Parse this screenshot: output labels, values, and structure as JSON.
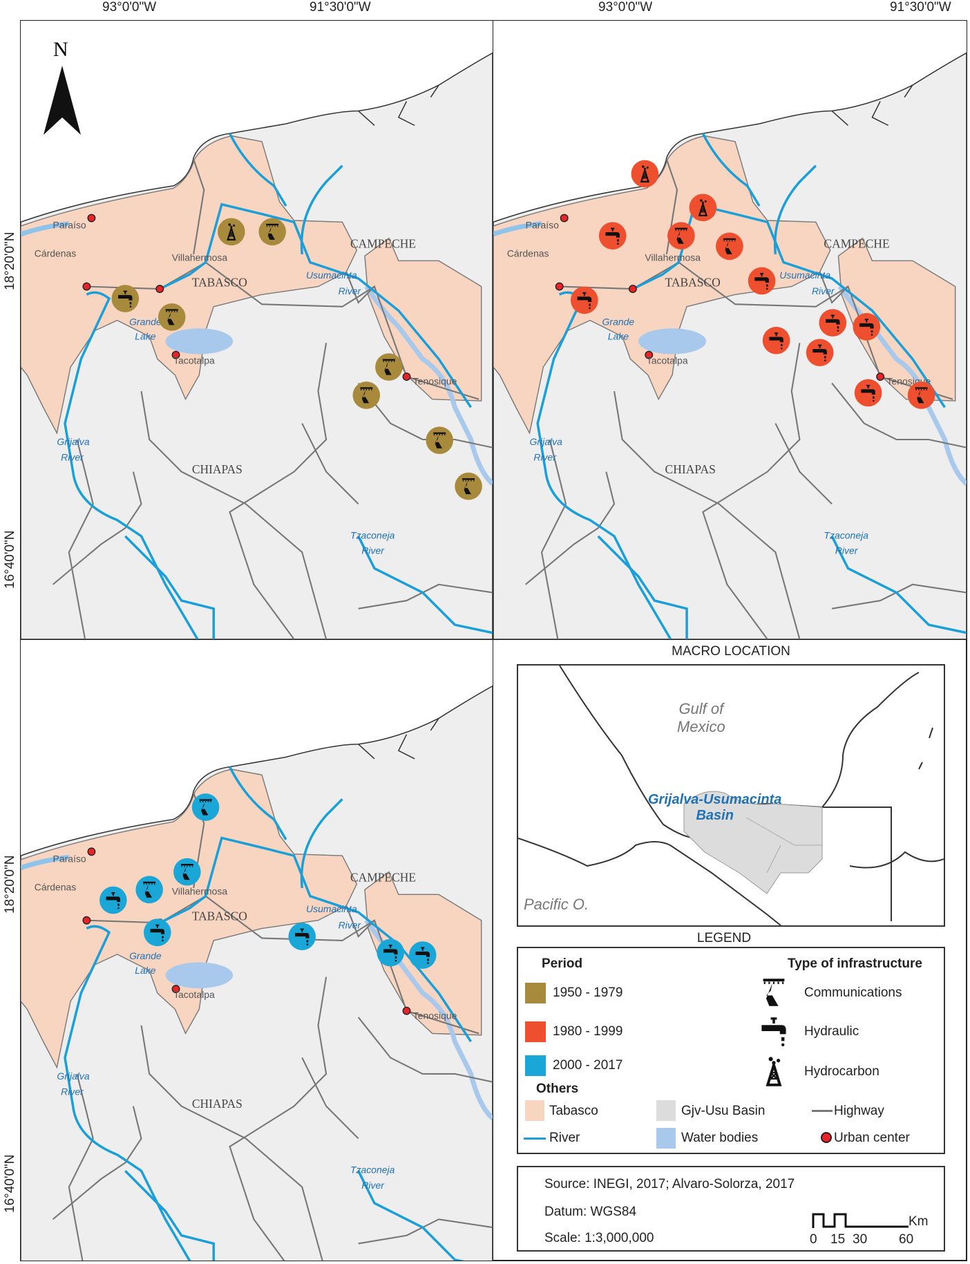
{
  "coordinates": {
    "lon_left": "93°0'0\"W",
    "lon_right": "91°30'0\"W",
    "lat_top": "18°20'0\"N",
    "lat_bottom": "16°40'0\"N"
  },
  "north_arrow": "N",
  "place_labels": {
    "paraiso": "Paraíso",
    "cardenas": "Cárdenas",
    "villahermosa": "Villahermosa",
    "tabasco": "TABASCO",
    "campeche": "CAMPECHE",
    "usumacinta_1": "Usumacinta",
    "usumacinta_2": "River",
    "grande_1": "Grande",
    "grande_2": "Lake",
    "tacotalpa": "Tacotalpa",
    "tenosique": "Tenosique",
    "grijalva_1": "Grijalva",
    "grijalva_2": "River",
    "chiapas": "CHIAPAS",
    "tzaconeja_1": "Tzaconeja",
    "tzaconeja_2": "River"
  },
  "panels": [
    {
      "period": "1950 - 1979",
      "color": "#a88a3c",
      "markers": [
        "hydrocarbon",
        "communications",
        "hydraulic",
        "communications",
        "communications",
        "communications",
        "communications",
        "communications"
      ]
    },
    {
      "period": "1980 - 1999",
      "color": "#ee4f2f",
      "markers": [
        "hydrocarbon",
        "hydrocarbon",
        "hydraulic",
        "communications",
        "communications",
        "hydraulic",
        "hydraulic",
        "hydraulic",
        "hydraulic",
        "hydraulic",
        "hydraulic",
        "hydraulic",
        "communications"
      ]
    },
    {
      "period": "2000 - 2017",
      "color": "#1aa7d8",
      "markers": [
        "communications",
        "communications",
        "communications",
        "hydraulic",
        "hydraulic",
        "hydraulic",
        "hydraulic",
        "hydraulic"
      ]
    }
  ],
  "macro": {
    "title": "MACRO LOCATION",
    "gulf_1": "Gulf of",
    "gulf_2": "Mexico",
    "basin_1": "Grijalva-Usumacinta",
    "basin_2": "Basin",
    "pacific": "Pacific O."
  },
  "legend": {
    "title": "LEGEND",
    "period_header": "Period",
    "periods": [
      {
        "label": "1950 - 1979",
        "color": "#a88a3c"
      },
      {
        "label": "1980 - 1999",
        "color": "#ee4f2f"
      },
      {
        "label": "2000 - 2017",
        "color": "#1aa7d8"
      }
    ],
    "type_header": "Type of infrastructure",
    "types": [
      {
        "label": "Communications",
        "icon": "communications-tower-icon"
      },
      {
        "label": "Hydraulic",
        "icon": "faucet-icon"
      },
      {
        "label": "Hydrocarbon",
        "icon": "oil-derrick-icon"
      }
    ],
    "others_header": "Others",
    "tabasco": "Tabasco",
    "river": "River",
    "basin": "Gjv-Usu Basin",
    "water": "Water bodies",
    "highway": "Highway",
    "urban": "Urban center",
    "colors": {
      "tabasco": "#f7d5c0",
      "river": "#1a9fd8",
      "basin": "#dcdcdc",
      "water": "#a9c9ec",
      "highway": "#777777",
      "urban": "#e8232a"
    }
  },
  "source": {
    "source": "Source: INEGI, 2017; Alvaro-Solorza, 2017",
    "datum": "Datum: WGS84",
    "scale": "Scale: 1:3,000,000",
    "scale_unit": "Km",
    "scale_ticks": [
      "0",
      "15",
      "30",
      "60"
    ]
  }
}
